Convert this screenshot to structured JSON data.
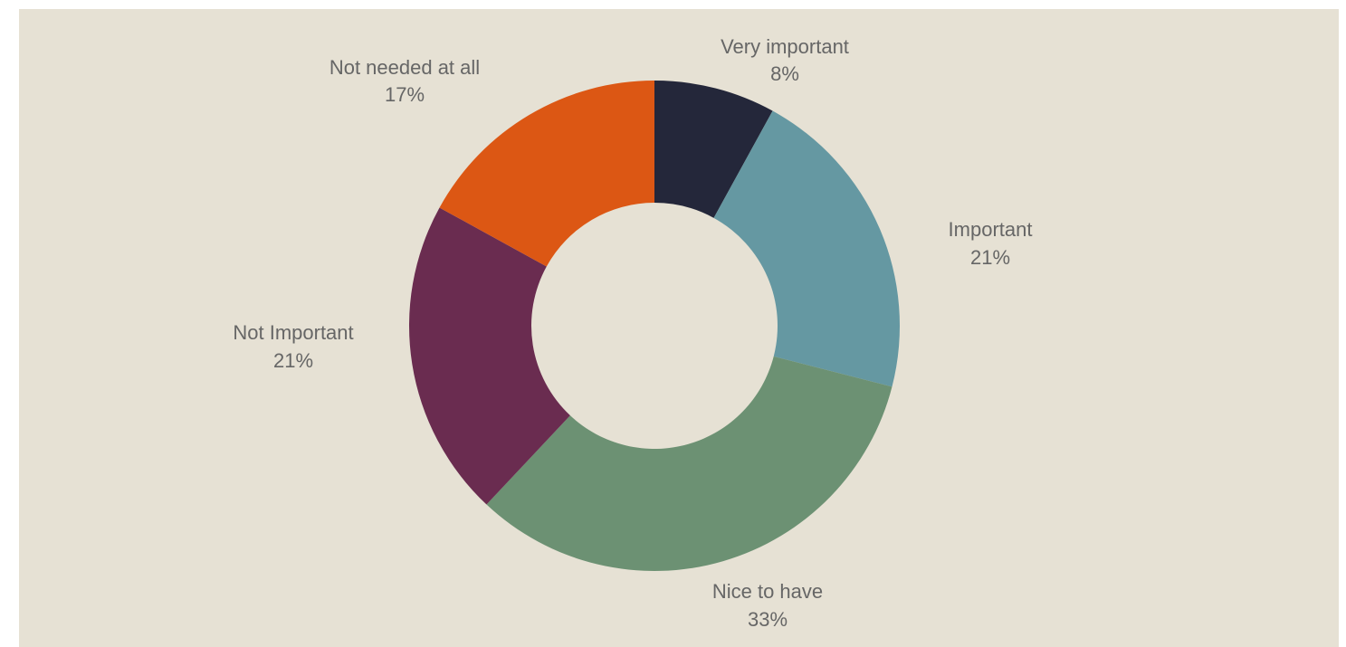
{
  "chart_data": {
    "type": "pie",
    "donut": true,
    "title": "",
    "categories": [
      "Very important",
      "Important",
      "Nice to have",
      "Not Important",
      "Not needed at all"
    ],
    "values": [
      8,
      21,
      33,
      21,
      17
    ],
    "value_labels": [
      "8%",
      "21%",
      "33%",
      "21%",
      "17%"
    ],
    "colors": [
      "#24273a",
      "#6598a2",
      "#6c9173",
      "#6a2c50",
      "#dc5714"
    ],
    "background": "#e6e1d4",
    "legend": "none"
  }
}
